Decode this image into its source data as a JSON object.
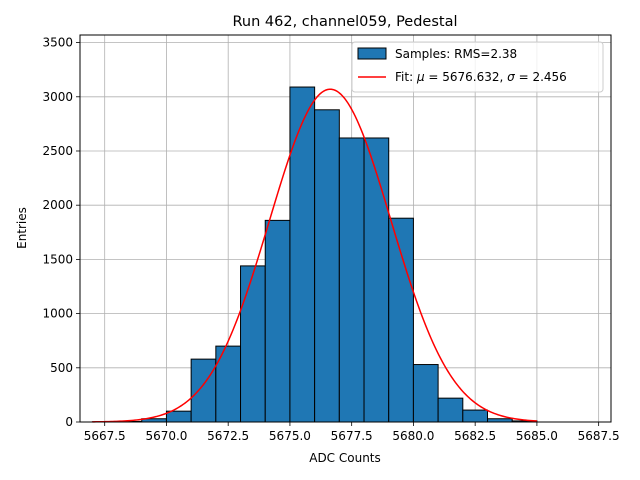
{
  "chart_data": {
    "type": "bar",
    "title": "Run 462, channel059, Pedestal",
    "xlabel": "ADC Counts",
    "ylabel": "Entries",
    "xlim": [
      5666.5,
      5688.0
    ],
    "ylim": [
      0,
      3570
    ],
    "grid": true,
    "legend_position": "top-right",
    "xticks": [
      "5667.5",
      "5670.0",
      "5672.5",
      "5675.0",
      "5677.5",
      "5680.0",
      "5682.5",
      "5685.0",
      "5687.5"
    ],
    "xtick_values": [
      5667.5,
      5670.0,
      5672.5,
      5675.0,
      5677.5,
      5680.0,
      5682.5,
      5685.0,
      5687.5
    ],
    "yticks": [
      "0",
      "500",
      "1000",
      "1500",
      "2000",
      "2500",
      "3000",
      "3500"
    ],
    "ytick_values": [
      0,
      500,
      1000,
      1500,
      2000,
      2500,
      3000,
      3500
    ],
    "bin_width": 1.0,
    "bins": [
      {
        "x": 5667.0,
        "value": 2
      },
      {
        "x": 5668.0,
        "value": 5
      },
      {
        "x": 5669.0,
        "value": 30
      },
      {
        "x": 5670.0,
        "value": 100
      },
      {
        "x": 5671.0,
        "value": 580
      },
      {
        "x": 5672.0,
        "value": 700
      },
      {
        "x": 5673.0,
        "value": 1440
      },
      {
        "x": 5674.0,
        "value": 1860
      },
      {
        "x": 5675.0,
        "value": 3090
      },
      {
        "x": 5676.0,
        "value": 2880
      },
      {
        "x": 5677.0,
        "value": 2620
      },
      {
        "x": 5678.0,
        "value": 2620
      },
      {
        "x": 5679.0,
        "value": 1880
      },
      {
        "x": 5680.0,
        "value": 530
      },
      {
        "x": 5681.0,
        "value": 220
      },
      {
        "x": 5682.0,
        "value": 110
      },
      {
        "x": 5683.0,
        "value": 30
      },
      {
        "x": 5684.0,
        "value": 10
      }
    ],
    "fit": {
      "mu": 5676.632,
      "sigma": 2.456,
      "amplitude": 3070,
      "x_range": [
        5667.0,
        5685.0
      ]
    },
    "series": [
      {
        "name": "Samples: RMS=2.38",
        "kind": "histogram",
        "color": "#1f77b4"
      },
      {
        "name_prefix": "Fit: ",
        "name_rich": [
          [
            "μ",
            true
          ],
          [
            " = 5676.632, ",
            false
          ],
          [
            "σ",
            true
          ],
          [
            " = 2.456",
            false
          ]
        ],
        "kind": "line",
        "color": "#ff0000"
      }
    ]
  }
}
